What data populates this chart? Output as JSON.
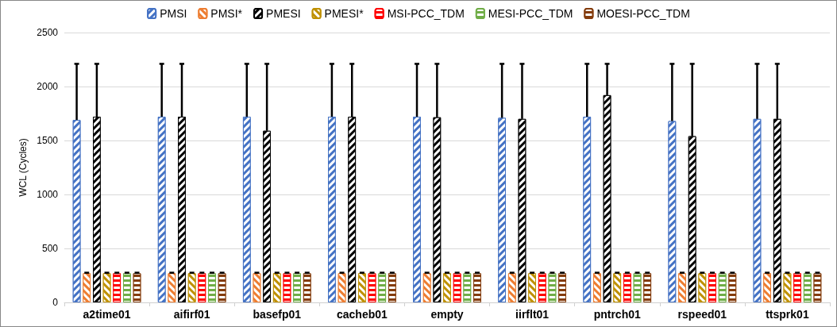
{
  "chart_data": {
    "type": "bar",
    "ylabel": "WCL (Cycles)",
    "categories": [
      "a2time01",
      "aifirf01",
      "basefp01",
      "cacheb01",
      "empty",
      "iirflt01",
      "pntrch01",
      "rspeed01",
      "ttsprk01"
    ],
    "ylim": [
      0,
      2500
    ],
    "yticks": [
      0,
      500,
      1000,
      1500,
      2000,
      2500
    ],
    "grid": "y",
    "legend": "top",
    "series": [
      {
        "name": "PMSI",
        "color": "#4472c4",
        "values": [
          1690,
          1720,
          1720,
          1720,
          1720,
          1710,
          1720,
          1680,
          1700
        ],
        "errors": [
          [
            1690,
            2210
          ],
          [
            1720,
            2210
          ],
          [
            1720,
            2210
          ],
          [
            1720,
            2210
          ],
          [
            1720,
            2210
          ],
          [
            1710,
            2210
          ],
          [
            1720,
            2210
          ],
          [
            1680,
            2210
          ],
          [
            1700,
            2210
          ]
        ]
      },
      {
        "name": "PMSI*",
        "color": "#ed7d31",
        "values": [
          270,
          270,
          270,
          270,
          270,
          270,
          270,
          270,
          270
        ],
        "errors": [
          [
            270,
            275
          ],
          [
            270,
            275
          ],
          [
            270,
            275
          ],
          [
            270,
            275
          ],
          [
            270,
            275
          ],
          [
            270,
            275
          ],
          [
            270,
            275
          ],
          [
            270,
            275
          ],
          [
            270,
            275
          ]
        ]
      },
      {
        "name": "PMESI",
        "color": "#000000",
        "values": [
          1720,
          1720,
          1590,
          1720,
          1715,
          1700,
          1920,
          1540,
          1700
        ],
        "errors": [
          [
            1720,
            2210
          ],
          [
            1720,
            2210
          ],
          [
            1590,
            2210
          ],
          [
            1720,
            2210
          ],
          [
            1715,
            2210
          ],
          [
            1700,
            2210
          ],
          [
            1920,
            2210
          ],
          [
            1540,
            2210
          ],
          [
            1700,
            2210
          ]
        ]
      },
      {
        "name": "PMESI*",
        "color": "#bf9000",
        "values": [
          270,
          270,
          270,
          270,
          270,
          270,
          270,
          270,
          270
        ],
        "errors": [
          [
            270,
            275
          ],
          [
            270,
            275
          ],
          [
            270,
            275
          ],
          [
            270,
            275
          ],
          [
            270,
            275
          ],
          [
            270,
            275
          ],
          [
            270,
            275
          ],
          [
            270,
            275
          ],
          [
            270,
            275
          ]
        ]
      },
      {
        "name": "MSI-PCC_TDM",
        "color": "#ff0000",
        "values": [
          270,
          270,
          270,
          270,
          270,
          270,
          270,
          270,
          270
        ],
        "errors": [
          [
            270,
            275
          ],
          [
            270,
            275
          ],
          [
            270,
            275
          ],
          [
            270,
            275
          ],
          [
            270,
            275
          ],
          [
            270,
            275
          ],
          [
            270,
            275
          ],
          [
            270,
            275
          ],
          [
            270,
            275
          ]
        ]
      },
      {
        "name": "MESI-PCC_TDM",
        "color": "#70ad47",
        "values": [
          270,
          270,
          270,
          270,
          270,
          270,
          270,
          270,
          270
        ],
        "errors": [
          [
            270,
            275
          ],
          [
            270,
            275
          ],
          [
            270,
            275
          ],
          [
            270,
            275
          ],
          [
            270,
            275
          ],
          [
            270,
            275
          ],
          [
            270,
            275
          ],
          [
            270,
            275
          ],
          [
            270,
            275
          ]
        ]
      },
      {
        "name": "MOESI-PCC_TDM",
        "color": "#843c0c",
        "values": [
          270,
          270,
          270,
          270,
          270,
          270,
          270,
          270,
          270
        ],
        "errors": [
          [
            270,
            275
          ],
          [
            270,
            275
          ],
          [
            270,
            275
          ],
          [
            270,
            275
          ],
          [
            270,
            275
          ],
          [
            270,
            275
          ],
          [
            270,
            275
          ],
          [
            270,
            275
          ],
          [
            270,
            275
          ]
        ]
      }
    ]
  }
}
